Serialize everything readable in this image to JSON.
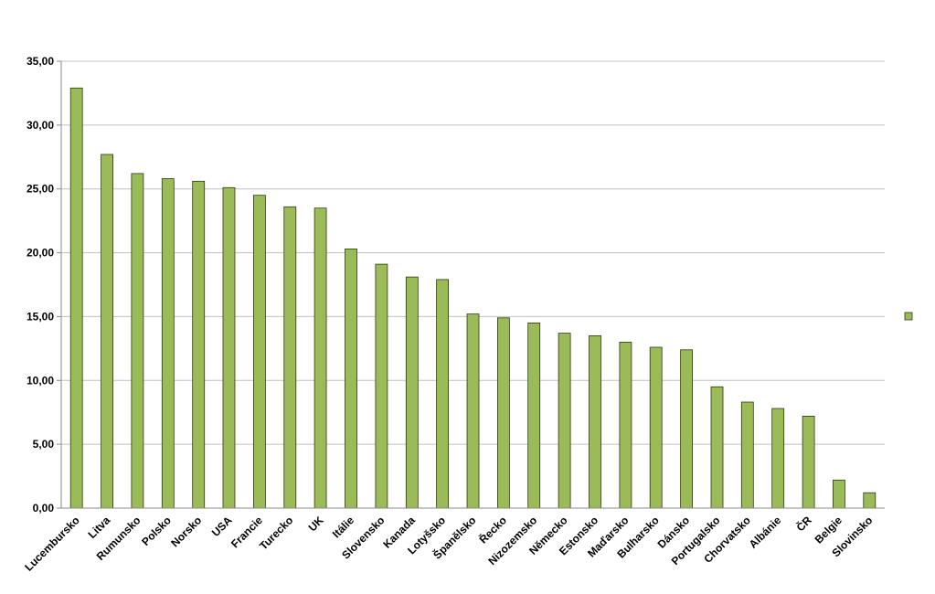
{
  "chart_data": {
    "type": "bar",
    "categories": [
      "Lucembursko",
      "Litva",
      "Rumunsko",
      "Polsko",
      "Norsko",
      "USA",
      "Francie",
      "Turecko",
      "UK",
      "Itálie",
      "Slovensko",
      "Kanada",
      "Lotyšsko",
      "Španělsko",
      "Řecko",
      "Nizozemsko",
      "Německo",
      "Estonsko",
      "Maďarsko",
      "Bulharsko",
      "Dánsko",
      "Portugalsko",
      "Chorvatsko",
      "Albánie",
      "ČR",
      "Belgie",
      "Slovinsko"
    ],
    "values": [
      32.9,
      27.7,
      26.2,
      25.8,
      25.6,
      25.1,
      24.5,
      23.6,
      23.5,
      20.3,
      19.1,
      18.1,
      17.9,
      15.2,
      14.9,
      14.5,
      13.7,
      13.5,
      13.0,
      12.6,
      12.4,
      9.5,
      8.3,
      7.8,
      7.2,
      2.2,
      1.2
    ],
    "yticks": [
      "0,00",
      "5,00",
      "10,00",
      "15,00",
      "20,00",
      "25,00",
      "30,00",
      "35,00"
    ],
    "ylim": [
      0,
      35
    ],
    "grid": true,
    "legend": "right",
    "colors": {
      "bar_fill": "#9bbb59",
      "bar_stroke": "#2b3a10",
      "grid": "#c0c0c0",
      "axis": "#8a8a8a"
    }
  }
}
